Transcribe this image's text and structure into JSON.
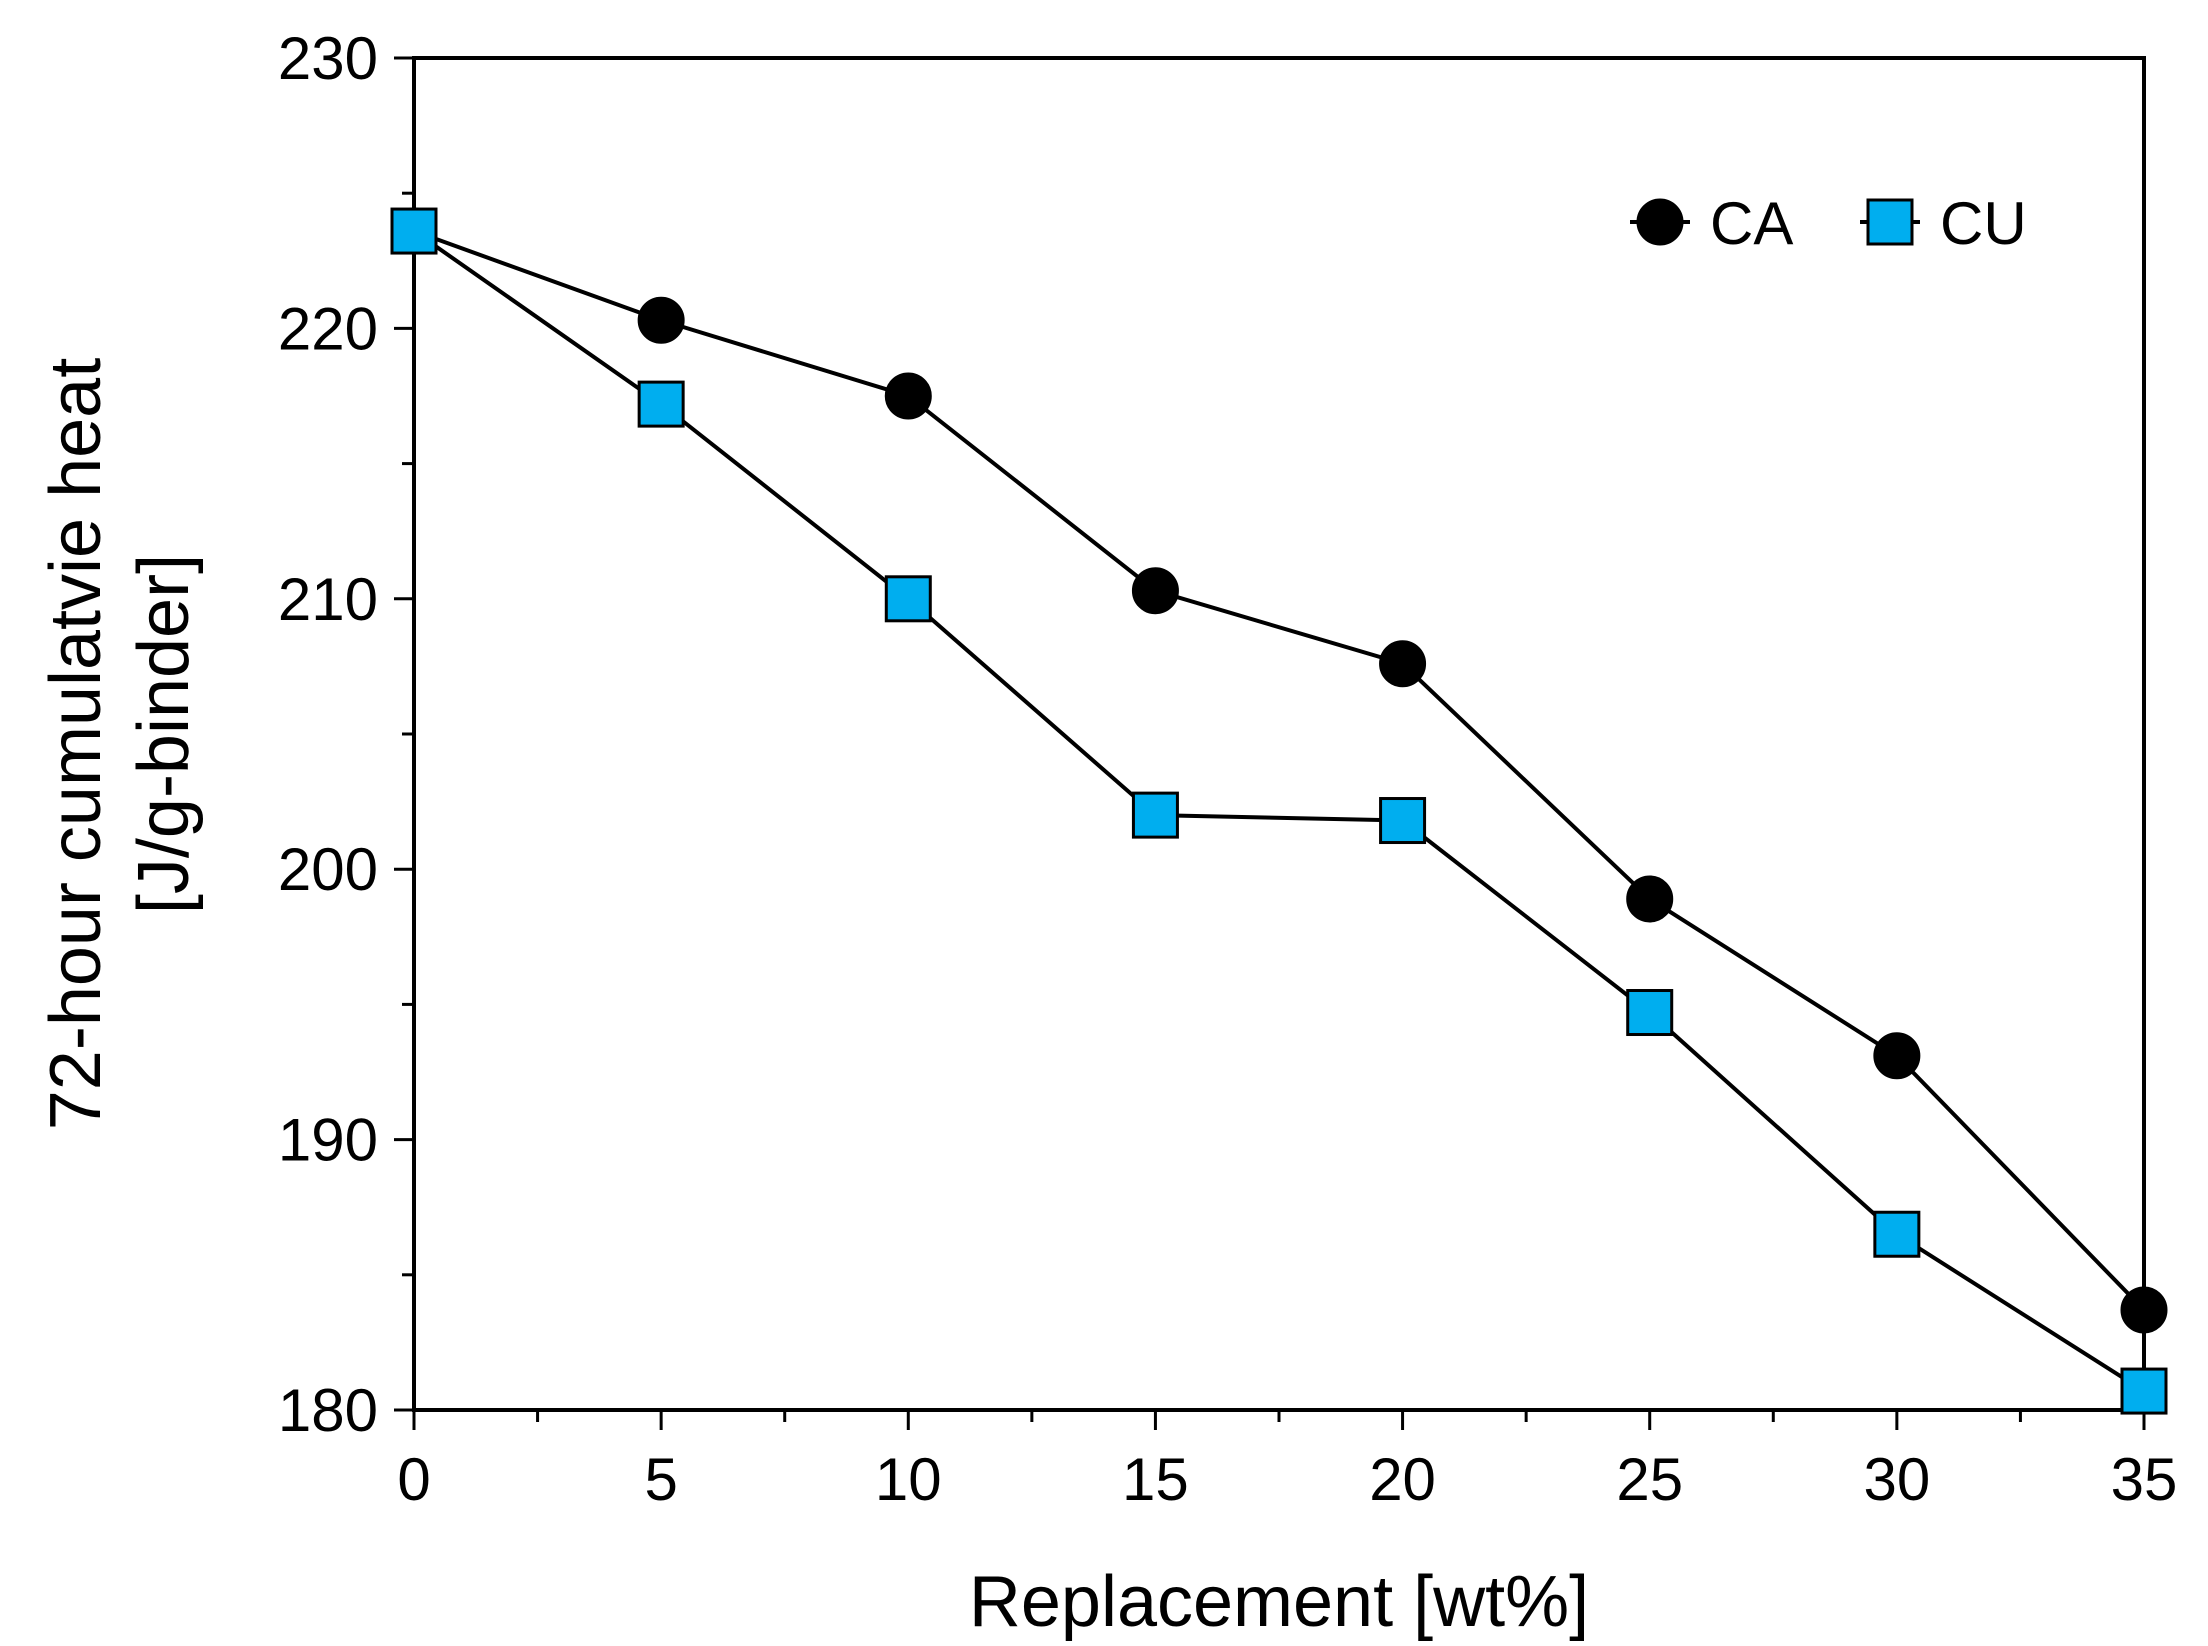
{
  "chart_data": {
    "type": "line",
    "title": "",
    "xlabel": "Replacement [wt%]",
    "ylabel_lines": [
      "72-hour cumulatvie heat",
      "[J/g-binder]"
    ],
    "xlim": [
      0,
      35
    ],
    "ylim": [
      180,
      230
    ],
    "x_major_ticks": [
      0,
      5,
      10,
      15,
      20,
      25,
      30,
      35
    ],
    "x_minor_step": 2.5,
    "y_major_ticks": [
      180,
      190,
      200,
      210,
      220,
      230
    ],
    "y_minor_step": 5,
    "grid": false,
    "legend_position": "top-right",
    "x": [
      0,
      5,
      10,
      15,
      20,
      25,
      30,
      35
    ],
    "series": [
      {
        "name": "CA",
        "marker": "circle",
        "color": "#000000",
        "values": [
          223.6,
          220.3,
          217.5,
          210.3,
          207.6,
          198.9,
          193.1,
          183.7
        ]
      },
      {
        "name": "CU",
        "marker": "square",
        "color": "#00AEEF",
        "values": [
          223.6,
          217.2,
          210.0,
          202.0,
          201.8,
          194.7,
          186.5,
          180.7
        ]
      }
    ]
  }
}
